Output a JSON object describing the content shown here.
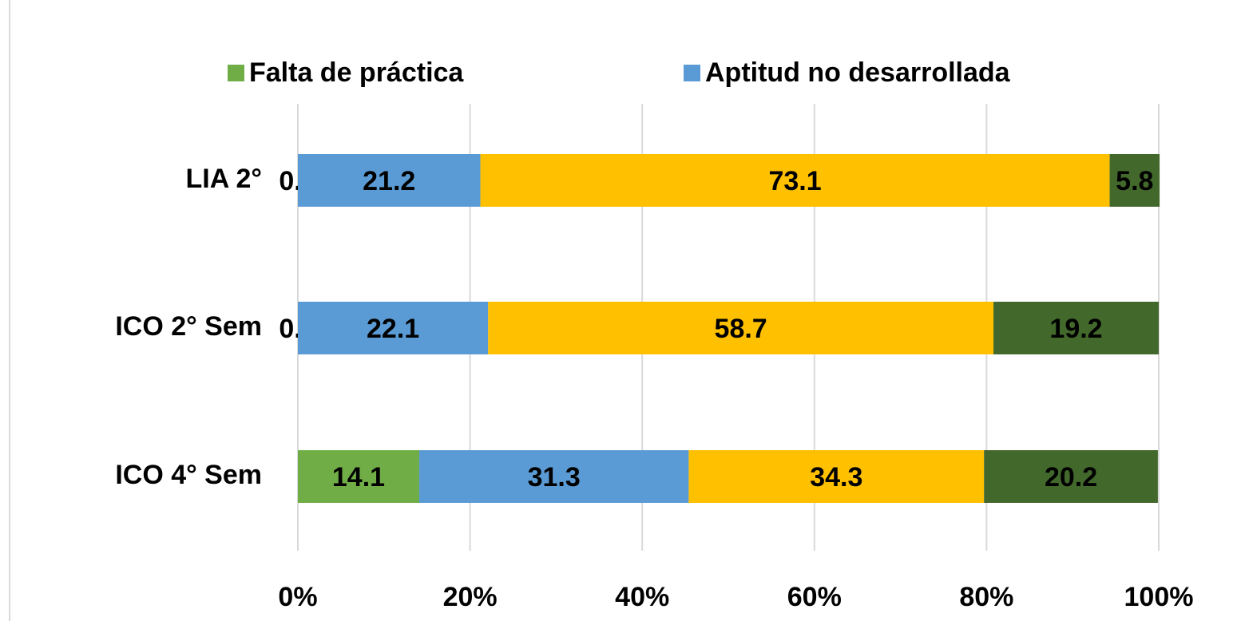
{
  "chart_data": {
    "type": "stacked-bar-horizontal",
    "categories": [
      "LIA 2°",
      "ICO 2° Sem",
      "ICO 4° Sem"
    ],
    "series": [
      {
        "name": "Falta de práctica",
        "color": "#70ad47",
        "values": [
          0.0,
          0.0,
          14.1
        ],
        "value_labels": [
          "0.0",
          "0.0",
          "14.1"
        ]
      },
      {
        "name": "Aptitud no desarrollada",
        "color": "#5b9bd5",
        "values": [
          21.2,
          22.1,
          31.3
        ],
        "value_labels": [
          "21.2",
          "22.1",
          "31.3"
        ]
      },
      {
        "color": "#ffc000",
        "values": [
          73.1,
          58.7,
          34.3
        ],
        "value_labels": [
          "73.1",
          "58.7",
          "34.3"
        ]
      },
      {
        "color": "#43682b",
        "values": [
          5.8,
          19.2,
          20.2
        ],
        "value_labels": [
          "5.8",
          "19.2",
          "20.2"
        ]
      }
    ],
    "xlim": [
      0,
      100
    ],
    "xticks": [
      {
        "value": 0,
        "label": "0%"
      },
      {
        "value": 20,
        "label": "20%"
      },
      {
        "value": 40,
        "label": "40%"
      },
      {
        "value": 60,
        "label": "60%"
      },
      {
        "value": 80,
        "label": "80%"
      },
      {
        "value": 100,
        "label": "100%"
      }
    ],
    "grid": true,
    "legend": "top"
  }
}
